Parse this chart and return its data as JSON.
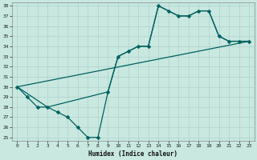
{
  "xlabel": "Humidex (Indice chaleur)",
  "bg_color": "#c8e8e0",
  "line_color": "#006060",
  "ylim": [
    25,
    38
  ],
  "xlim": [
    -0.5,
    23.5
  ],
  "yticks": [
    25,
    26,
    27,
    28,
    29,
    30,
    31,
    32,
    33,
    34,
    35,
    36,
    37,
    38
  ],
  "xticks": [
    0,
    1,
    2,
    3,
    4,
    5,
    6,
    7,
    8,
    9,
    10,
    11,
    12,
    13,
    14,
    15,
    16,
    17,
    18,
    19,
    20,
    21,
    22,
    23
  ],
  "line1_x": [
    0,
    1,
    2,
    3,
    4,
    5,
    6,
    7,
    8,
    9,
    10,
    11,
    12,
    13,
    14,
    15,
    16,
    17,
    18,
    19,
    20,
    21,
    22,
    23
  ],
  "line1_y": [
    30,
    29,
    28,
    28,
    27.5,
    27,
    26,
    25,
    25,
    29.5,
    33,
    33.5,
    34,
    34,
    38,
    37.5,
    37,
    37,
    37.5,
    37.5,
    35,
    34.5,
    34.5,
    34.5
  ],
  "line2_x": [
    0,
    3,
    9,
    10,
    11,
    12,
    13,
    14,
    15,
    16,
    17,
    18,
    19,
    20,
    21,
    22,
    23
  ],
  "line2_y": [
    30,
    28,
    29.5,
    33,
    33.5,
    34,
    34,
    38,
    37.5,
    37,
    37,
    37.5,
    37.5,
    35,
    34.5,
    34.5,
    34.5
  ],
  "line3_x": [
    0,
    23
  ],
  "line3_y": [
    30,
    34.5
  ],
  "markersize": 2.5
}
